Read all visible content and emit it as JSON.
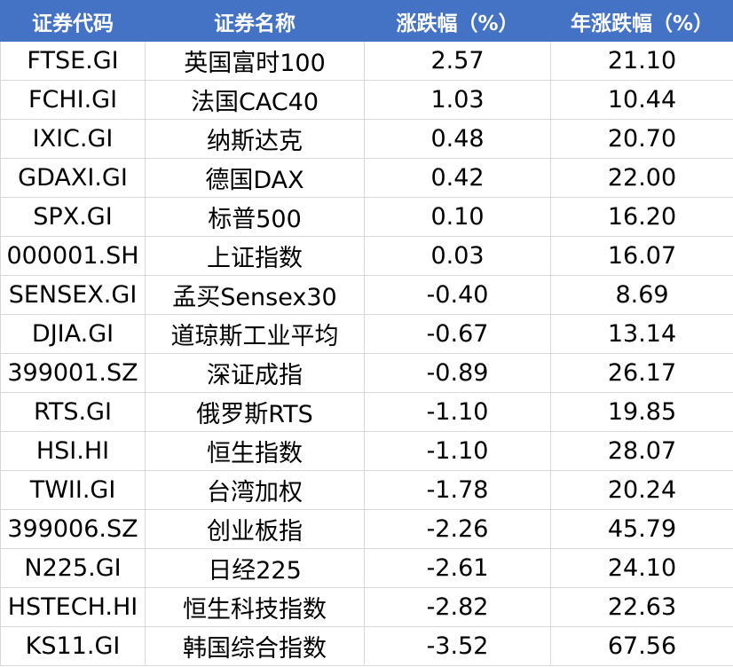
{
  "table": {
    "header": [
      "证券代码",
      "证券名称",
      "涨跌幅（%）",
      "年涨跌幅（%）"
    ],
    "rows": [
      [
        "FTSE.GI",
        "英国富时100",
        "2.57",
        "21.10"
      ],
      [
        "FCHI.GI",
        "法国CAC40",
        "1.03",
        "10.44"
      ],
      [
        "IXIC.GI",
        "纳斯达克",
        "0.48",
        "20.70"
      ],
      [
        "GDAXI.GI",
        "德国DAX",
        "0.42",
        "22.00"
      ],
      [
        "SPX.GI",
        "标普500",
        "0.10",
        "16.20"
      ],
      [
        "000001.SH",
        "上证指数",
        "0.03",
        "16.07"
      ],
      [
        "SENSEX.GI",
        "孟买Sensex30",
        "-0.40",
        "8.69"
      ],
      [
        "DJIA.GI",
        "道琼斯工业平均",
        "-0.67",
        "13.14"
      ],
      [
        "399001.SZ",
        "深证成指",
        "-0.89",
        "26.17"
      ],
      [
        "RTS.GI",
        "俄罗斯RTS",
        "-1.10",
        "19.85"
      ],
      [
        "HSI.HI",
        "恒生指数",
        "-1.10",
        "28.07"
      ],
      [
        "TWII.GI",
        "台湾加权",
        "-1.78",
        "20.24"
      ],
      [
        "399006.SZ",
        "创业板指",
        "-2.26",
        "45.79"
      ],
      [
        "N225.GI",
        "日经225",
        "-2.61",
        "24.10"
      ],
      [
        "HSTECH.HI",
        "恒生科技指数",
        "-2.82",
        "22.63"
      ],
      [
        "KS11.GI",
        "韩国综合指数",
        "-3.52",
        "67.56"
      ]
    ]
  }
}
